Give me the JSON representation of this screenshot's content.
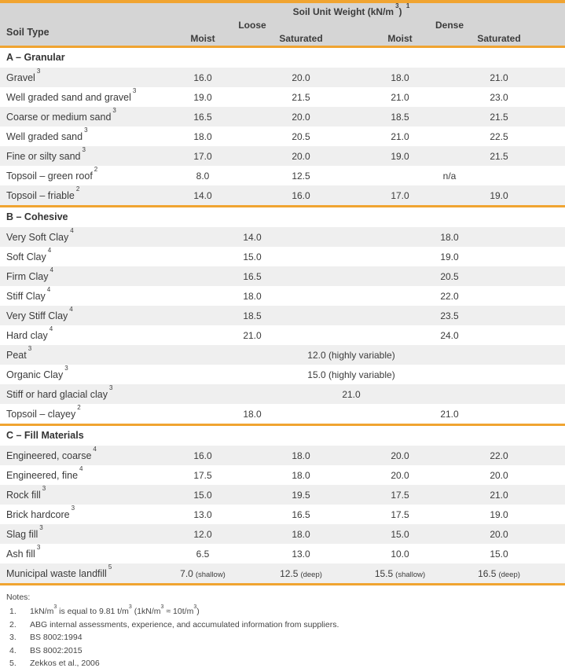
{
  "colors": {
    "accent_orange": "#F0A431",
    "header_bg": "#D5D5D5",
    "row_stripe": "#EFEFEF",
    "text": "#3B3B3B"
  },
  "header": {
    "title": {
      "pre": "Soil Unit Weight (kN/m",
      "sup_unit": "3",
      "close": ") ",
      "ref": "1"
    },
    "soil_type": "Soil Type",
    "groups": [
      {
        "label": "Loose",
        "cols": [
          "Moist",
          "Saturated"
        ]
      },
      {
        "label": "Dense",
        "cols": [
          "Moist",
          "Saturated"
        ]
      }
    ]
  },
  "table": {
    "sections": [
      {
        "title": "A – Granular",
        "rows": [
          {
            "label": "Gravel",
            "sup": "3",
            "cells": [
              {
                "col": "lm",
                "value": "16.0"
              },
              {
                "col": "ls",
                "value": "20.0"
              },
              {
                "col": "dm",
                "value": "18.0"
              },
              {
                "col": "ds",
                "value": "21.0"
              }
            ]
          },
          {
            "label": "Well graded sand and gravel",
            "sup": "3",
            "cells": [
              {
                "col": "lm",
                "value": "19.0"
              },
              {
                "col": "ls",
                "value": "21.5"
              },
              {
                "col": "dm",
                "value": "21.0"
              },
              {
                "col": "ds",
                "value": "23.0"
              }
            ]
          },
          {
            "label": "Coarse or medium sand",
            "sup": "3",
            "cells": [
              {
                "col": "lm",
                "value": "16.5"
              },
              {
                "col": "ls",
                "value": "20.0"
              },
              {
                "col": "dm",
                "value": "18.5"
              },
              {
                "col": "ds",
                "value": "21.5"
              }
            ]
          },
          {
            "label": "Well graded sand",
            "sup": "3",
            "cells": [
              {
                "col": "lm",
                "value": "18.0"
              },
              {
                "col": "ls",
                "value": "20.5"
              },
              {
                "col": "dm",
                "value": "21.0"
              },
              {
                "col": "ds",
                "value": "22.5"
              }
            ]
          },
          {
            "label": "Fine or silty sand",
            "sup": "3",
            "cells": [
              {
                "col": "lm",
                "value": "17.0"
              },
              {
                "col": "ls",
                "value": "20.0"
              },
              {
                "col": "dm",
                "value": "19.0"
              },
              {
                "col": "ds",
                "value": "21.5"
              }
            ]
          },
          {
            "label": "Topsoil – green roof",
            "sup": "2",
            "cells": [
              {
                "col": "lm",
                "value": "8.0"
              },
              {
                "col": "ls",
                "value": "12.5"
              },
              {
                "col": "dense",
                "value": "n/a"
              }
            ]
          },
          {
            "label": "Topsoil – friable",
            "sup": "2",
            "cells": [
              {
                "col": "lm",
                "value": "14.0"
              },
              {
                "col": "ls",
                "value": "16.0"
              },
              {
                "col": "dm",
                "value": "17.0"
              },
              {
                "col": "ds",
                "value": "19.0"
              }
            ]
          }
        ]
      },
      {
        "title": "B – Cohesive",
        "rows": [
          {
            "label": "Very Soft Clay",
            "sup": "4",
            "cells": [
              {
                "col": "loose",
                "value": "14.0"
              },
              {
                "col": "dense",
                "value": "18.0"
              }
            ]
          },
          {
            "label": "Soft Clay",
            "sup": "4",
            "cells": [
              {
                "col": "loose",
                "value": "15.0"
              },
              {
                "col": "dense",
                "value": "19.0"
              }
            ]
          },
          {
            "label": "Firm Clay",
            "sup": "4",
            "cells": [
              {
                "col": "loose",
                "value": "16.5"
              },
              {
                "col": "dense",
                "value": "20.5"
              }
            ]
          },
          {
            "label": "Stiff Clay",
            "sup": "4",
            "cells": [
              {
                "col": "loose",
                "value": "18.0"
              },
              {
                "col": "dense",
                "value": "22.0"
              }
            ]
          },
          {
            "label": "Very Stiff Clay",
            "sup": "4",
            "cells": [
              {
                "col": "loose",
                "value": "18.5"
              },
              {
                "col": "dense",
                "value": "23.5"
              }
            ]
          },
          {
            "label": "Hard clay",
            "sup": "4",
            "cells": [
              {
                "col": "loose",
                "value": "21.0"
              },
              {
                "col": "dense",
                "value": "24.0"
              }
            ]
          },
          {
            "label": "Peat",
            "sup": "3",
            "cells": [
              {
                "col": "all",
                "value": "12.0 (highly variable)"
              }
            ]
          },
          {
            "label": "Organic Clay",
            "sup": "3",
            "cells": [
              {
                "col": "all",
                "value": "15.0 (highly variable)"
              }
            ]
          },
          {
            "label": "Stiff or hard glacial clay",
            "sup": "3",
            "cells": [
              {
                "col": "all",
                "value": "21.0"
              }
            ]
          },
          {
            "label": "Topsoil – clayey",
            "sup": "2",
            "cells": [
              {
                "col": "loose",
                "value": "18.0"
              },
              {
                "col": "dense",
                "value": "21.0"
              }
            ]
          }
        ]
      },
      {
        "title": "C – Fill Materials",
        "rows": [
          {
            "label": "Engineered, coarse",
            "sup": "4",
            "cells": [
              {
                "col": "lm",
                "value": "16.0"
              },
              {
                "col": "ls",
                "value": "18.0"
              },
              {
                "col": "dm",
                "value": "20.0"
              },
              {
                "col": "ds",
                "value": "22.0"
              }
            ]
          },
          {
            "label": "Engineered, fine",
            "sup": "4",
            "cells": [
              {
                "col": "lm",
                "value": "17.5"
              },
              {
                "col": "ls",
                "value": "18.0"
              },
              {
                "col": "dm",
                "value": "20.0"
              },
              {
                "col": "ds",
                "value": "20.0"
              }
            ]
          },
          {
            "label": "Rock fill",
            "sup": "3",
            "cells": [
              {
                "col": "lm",
                "value": "15.0"
              },
              {
                "col": "ls",
                "value": "19.5"
              },
              {
                "col": "dm",
                "value": "17.5"
              },
              {
                "col": "ds",
                "value": "21.0"
              }
            ]
          },
          {
            "label": "Brick hardcore",
            "sup": "3",
            "cells": [
              {
                "col": "lm",
                "value": "13.0"
              },
              {
                "col": "ls",
                "value": "16.5"
              },
              {
                "col": "dm",
                "value": "17.5"
              },
              {
                "col": "ds",
                "value": "19.0"
              }
            ]
          },
          {
            "label": "Slag fill",
            "sup": "3",
            "cells": [
              {
                "col": "lm",
                "value": "12.0"
              },
              {
                "col": "ls",
                "value": "18.0"
              },
              {
                "col": "dm",
                "value": "15.0"
              },
              {
                "col": "ds",
                "value": "20.0"
              }
            ]
          },
          {
            "label": "Ash fill",
            "sup": "3",
            "cells": [
              {
                "col": "lm",
                "value": "6.5"
              },
              {
                "col": "ls",
                "value": "13.0"
              },
              {
                "col": "dm",
                "value": "10.0"
              },
              {
                "col": "ds",
                "value": "15.0"
              }
            ]
          },
          {
            "label": "Municipal waste landfill",
            "sup": "5",
            "cells": [
              {
                "col": "lm",
                "value": "7.0",
                "small": "(shallow)"
              },
              {
                "col": "ls",
                "value": "12.5",
                "small": "(deep)"
              },
              {
                "col": "dm",
                "value": "15.5",
                "small": "(shallow)"
              },
              {
                "col": "ds",
                "value": "16.5",
                "small": "(deep)"
              }
            ]
          }
        ]
      }
    ]
  },
  "notes": {
    "title": "Notes:",
    "items": [
      {
        "num": "1.",
        "segments": [
          {
            "t": "1kN/m"
          },
          {
            "sup": "3"
          },
          {
            "t": " is  equal to 9.81 t/m"
          },
          {
            "sup": "3"
          },
          {
            "t": " (1kN/m"
          },
          {
            "sup": "3"
          },
          {
            "t": " ≈ 10t/m"
          },
          {
            "sup": "3"
          },
          {
            "t": ")"
          }
        ]
      },
      {
        "num": "2.",
        "segments": [
          {
            "t": "ABG internal assessments, experience, and accumulated information from suppliers."
          }
        ]
      },
      {
        "num": "3.",
        "segments": [
          {
            "t": "BS 8002:1994"
          }
        ]
      },
      {
        "num": "4.",
        "segments": [
          {
            "t": "BS 8002:2015"
          }
        ]
      },
      {
        "num": "5.",
        "segments": [
          {
            "t": "Zekkos et al., 2006"
          }
        ]
      }
    ]
  }
}
